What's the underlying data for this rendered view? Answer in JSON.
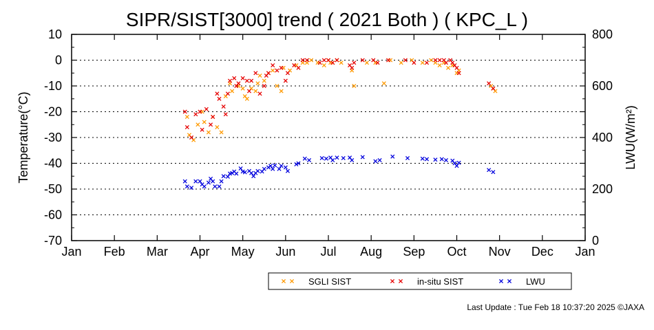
{
  "chart_data": {
    "type": "scatter",
    "title": "SIPR/SIST[3000] trend ( 2021 Both ) ( KPC_L )",
    "ylabel": "Temperature(°C)",
    "y2label": "LWU(W/m²)",
    "ylim": [
      -70,
      10
    ],
    "y2lim": [
      0,
      800
    ],
    "xlim": [
      0,
      12
    ],
    "yticks": [
      "10",
      "0",
      "-10",
      "-20",
      "-30",
      "-40",
      "-50",
      "-60",
      "-70"
    ],
    "y2ticks": [
      "800",
      "600",
      "400",
      "200",
      "0"
    ],
    "months": [
      "Jan",
      "Feb",
      "Mar",
      "Apr",
      "May",
      "Jun",
      "Jul",
      "Aug",
      "Sep",
      "Oct",
      "Nov",
      "Dec",
      "Jan"
    ],
    "grid": true,
    "legend_position": "bottom-right",
    "colors": {
      "sgli": "#ff9900",
      "insitu": "#e60000",
      "lwu": "#0000dd"
    },
    "legend": [
      {
        "key": "sgli",
        "label": "SGLI SIST"
      },
      {
        "key": "insitu",
        "label": "in-situ SIST"
      },
      {
        "key": "lwu",
        "label": "LWU"
      }
    ],
    "series": [
      {
        "key": "sgli",
        "axis": "left",
        "name": "SGLI SIST",
        "x": [
          2.7,
          2.75,
          2.85,
          2.95,
          3.05,
          3.1,
          3.2,
          3.3,
          3.4,
          3.5,
          3.6,
          3.7,
          3.75,
          3.9,
          4.0,
          4.05,
          4.1,
          4.2,
          4.3,
          4.35,
          4.4,
          4.5,
          4.6,
          4.7,
          4.8,
          4.9,
          4.95,
          5.1,
          5.25,
          5.4,
          5.5,
          5.6,
          5.75,
          5.9,
          6.0,
          6.05,
          6.1,
          6.2,
          6.3,
          6.55,
          6.6,
          6.9,
          7.1,
          7.3,
          7.45,
          7.7,
          7.95,
          8.2,
          8.4,
          8.5,
          8.6,
          8.7,
          8.8,
          8.9,
          9.0,
          9.05,
          9.8,
          9.85,
          9.9
        ],
        "y": [
          -22,
          -29,
          -31,
          -25,
          -20,
          -24,
          -28,
          -22,
          -26,
          -28,
          -14,
          -9,
          -12,
          -10,
          -11,
          -14,
          -15,
          -11,
          -12,
          -9,
          -6,
          -8,
          -5,
          -4,
          -10,
          -12,
          -3,
          -4,
          -2,
          -1,
          -1,
          0,
          -1,
          -2,
          0,
          -1,
          -1,
          0,
          -1,
          -4,
          -10,
          -1,
          -1,
          -9,
          0,
          -1,
          0,
          -1,
          0,
          -1,
          -2,
          -1,
          -3,
          -2,
          -5,
          -4,
          -10,
          -11,
          -12
        ]
      },
      {
        "key": "insitu",
        "axis": "left",
        "name": "in-situ SIST",
        "x": [
          2.65,
          2.7,
          2.8,
          2.9,
          3.0,
          3.05,
          3.15,
          3.25,
          3.3,
          3.4,
          3.45,
          3.55,
          3.6,
          3.65,
          3.7,
          3.8,
          3.85,
          3.9,
          4.0,
          4.1,
          4.15,
          4.2,
          4.3,
          4.4,
          4.5,
          4.55,
          4.6,
          4.7,
          4.8,
          4.9,
          5.0,
          5.05,
          5.2,
          5.3,
          5.4,
          5.5,
          5.8,
          5.9,
          6.0,
          6.1,
          6.2,
          6.5,
          6.55,
          6.6,
          6.8,
          7.05,
          7.15,
          7.4,
          7.8,
          8.0,
          8.3,
          8.5,
          8.6,
          8.7,
          8.75,
          8.85,
          8.9,
          8.95,
          9.0,
          9.05,
          9.75,
          9.85
        ],
        "y": [
          -20,
          -26,
          -30,
          -21,
          -20,
          -27,
          -19,
          -25,
          -22,
          -13,
          -15,
          -18,
          -21,
          -13,
          -8,
          -7,
          -10,
          -9,
          -7,
          -8,
          -12,
          -8,
          -5,
          -13,
          -10,
          -6,
          -5,
          -2,
          -4,
          -3,
          -8,
          -5,
          -2,
          -3,
          0,
          0,
          -1,
          0,
          0,
          -1,
          0,
          -2,
          -3,
          -1,
          0,
          0,
          -1,
          0,
          0,
          -1,
          -1,
          0,
          0,
          0,
          -1,
          0,
          -1,
          -2,
          -3,
          -5,
          -9,
          -11
        ]
      },
      {
        "key": "lwu",
        "axis": "right",
        "name": "LWU",
        "x": [
          2.65,
          2.7,
          2.8,
          2.9,
          3.0,
          3.05,
          3.1,
          3.2,
          3.25,
          3.3,
          3.35,
          3.45,
          3.5,
          3.55,
          3.65,
          3.7,
          3.75,
          3.8,
          3.85,
          3.95,
          4.0,
          4.05,
          4.15,
          4.2,
          4.25,
          4.3,
          4.35,
          4.45,
          4.5,
          4.6,
          4.65,
          4.7,
          4.75,
          4.85,
          4.9,
          5.0,
          5.05,
          5.25,
          5.3,
          5.45,
          5.55,
          5.85,
          5.95,
          6.05,
          6.1,
          6.2,
          6.35,
          6.5,
          6.55,
          6.8,
          7.1,
          7.2,
          7.5,
          7.85,
          8.2,
          8.3,
          8.5,
          8.65,
          8.75,
          8.9,
          8.95,
          9.0,
          9.05,
          9.75,
          9.85
        ],
        "y": [
          230,
          210,
          205,
          230,
          230,
          218,
          210,
          225,
          240,
          230,
          210,
          210,
          230,
          250,
          248,
          260,
          262,
          268,
          260,
          280,
          268,
          265,
          270,
          262,
          250,
          262,
          270,
          268,
          278,
          284,
          290,
          278,
          292,
          278,
          290,
          284,
          270,
          296,
          300,
          318,
          312,
          320,
          318,
          322,
          312,
          322,
          320,
          322,
          312,
          324,
          308,
          312,
          326,
          320,
          318,
          316,
          314,
          316,
          312,
          310,
          300,
          290,
          302,
          274,
          266
        ]
      }
    ]
  },
  "footer": {
    "text": "Last Update : Tue Feb 18 10:37:20 2025  ©JAXA"
  }
}
